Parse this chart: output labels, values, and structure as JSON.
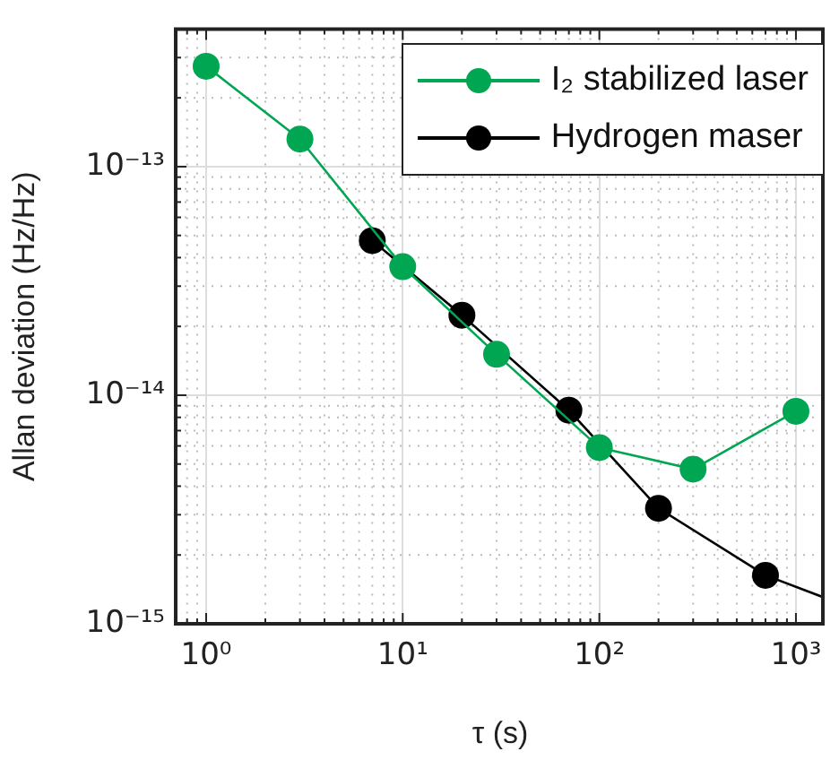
{
  "chart_data": {
    "type": "line",
    "xlabel": "τ (s)",
    "ylabel": "Allan deviation (Hz/Hz)",
    "log": "xy",
    "grid": true,
    "legend": "top right",
    "marker": "circle",
    "line_style": "solid",
    "xlim": [
      0.7,
      1400
    ],
    "ylim": [
      1e-15,
      4e-13
    ],
    "xticks": [
      {
        "value": 1,
        "label": "10⁰"
      },
      {
        "value": 10,
        "label": "10¹"
      },
      {
        "value": 100,
        "label": "10²"
      },
      {
        "value": 1000,
        "label": "10³"
      }
    ],
    "yticks": [
      {
        "value": 1e-15,
        "label": "10⁻¹⁵"
      },
      {
        "value": 1e-14,
        "label": "10⁻¹⁴"
      },
      {
        "value": 1e-13,
        "label": "10⁻¹³"
      }
    ],
    "series": [
      {
        "name": "I₂ stabilized laser",
        "color": "#00a651",
        "x": [
          1,
          3,
          10,
          30,
          100,
          300,
          1000
        ],
        "values": [
          2.75e-13,
          1.32e-13,
          3.65e-14,
          1.51e-14,
          5.9e-15,
          4.75e-15,
          8.5e-15
        ]
      },
      {
        "name": "Hydrogen maser",
        "color": "#000000",
        "x": [
          7,
          20,
          70,
          200,
          700
        ],
        "values": [
          4.75e-14,
          2.24e-14,
          8.6e-15,
          3.2e-15,
          1.63e-15
        ]
      },
      {
        "color": "#000000",
        "marker": "none",
        "x": [
          700,
          1400
        ],
        "values": [
          1.63e-15,
          1.3e-15
        ]
      }
    ]
  }
}
